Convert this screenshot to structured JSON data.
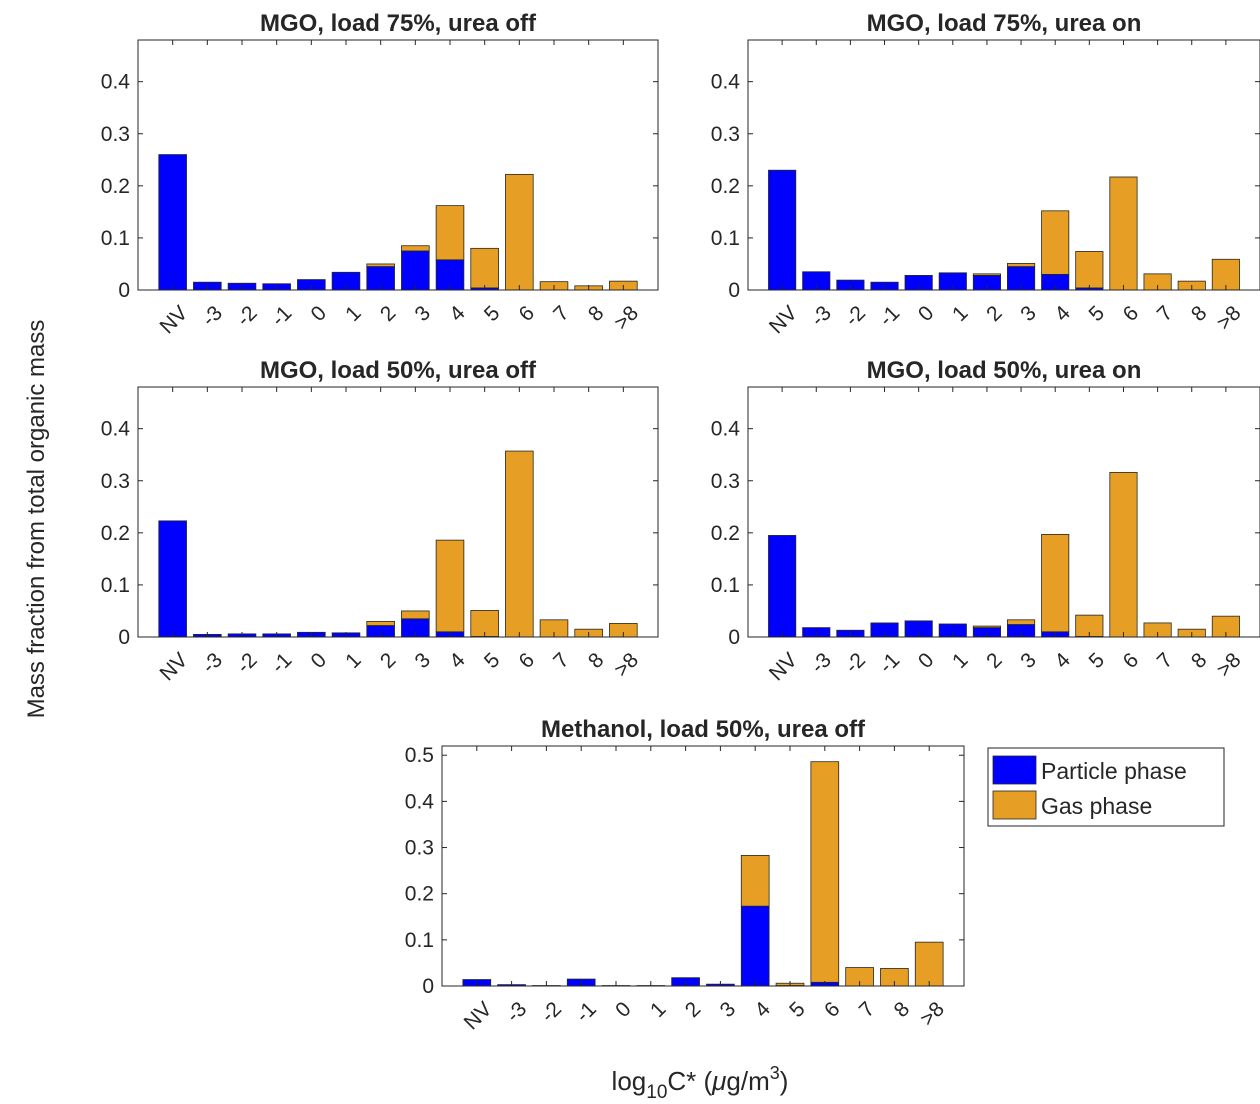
{
  "figure": {
    "ylabel": "Mass fraction from total organic mass",
    "xlabel_parts": [
      "log",
      "10",
      "C* (",
      "μ",
      "g/m",
      "3",
      ")"
    ]
  },
  "legend": {
    "items": [
      {
        "label": "Particle phase",
        "color": "#0000ff"
      },
      {
        "label": "Gas phase",
        "color": "#e69f24"
      }
    ]
  },
  "chart_data": [
    {
      "type": "bar",
      "stacked": true,
      "title": "MGO, load 75%, urea off",
      "categories": [
        "NV",
        "-3",
        "-2",
        "-1",
        "0",
        "1",
        "2",
        "3",
        "4",
        "5",
        "6",
        "7",
        "8",
        ">8"
      ],
      "ylim": [
        0,
        0.48
      ],
      "yticks": [
        0,
        0.1,
        0.2,
        0.3,
        0.4
      ],
      "series": [
        {
          "name": "Particle phase",
          "color": "#0000ff",
          "values": [
            0.26,
            0.015,
            0.013,
            0.012,
            0.02,
            0.034,
            0.045,
            0.075,
            0.058,
            0.004,
            0,
            0,
            0,
            0
          ]
        },
        {
          "name": "Gas phase",
          "color": "#e69f24",
          "values": [
            0,
            0,
            0,
            0,
            0,
            0,
            0.005,
            0.01,
            0.104,
            0.076,
            0.222,
            0.016,
            0.008,
            0.017
          ]
        }
      ]
    },
    {
      "type": "bar",
      "stacked": true,
      "title": "MGO, load 75%, urea on",
      "categories": [
        "NV",
        "-3",
        "-2",
        "-1",
        "0",
        "1",
        "2",
        "3",
        "4",
        "5",
        "6",
        "7",
        "8",
        ">8"
      ],
      "ylim": [
        0,
        0.48
      ],
      "yticks": [
        0,
        0.1,
        0.2,
        0.3,
        0.4
      ],
      "series": [
        {
          "name": "Particle phase",
          "color": "#0000ff",
          "values": [
            0.23,
            0.035,
            0.019,
            0.015,
            0.028,
            0.033,
            0.028,
            0.045,
            0.03,
            0.004,
            0,
            0,
            0,
            0
          ]
        },
        {
          "name": "Gas phase",
          "color": "#e69f24",
          "values": [
            0,
            0,
            0,
            0,
            0,
            0,
            0.003,
            0.006,
            0.122,
            0.07,
            0.217,
            0.031,
            0.017,
            0.059
          ]
        }
      ]
    },
    {
      "type": "bar",
      "stacked": true,
      "title": "MGO, load 50%, urea off",
      "categories": [
        "NV",
        "-3",
        "-2",
        "-1",
        "0",
        "1",
        "2",
        "3",
        "4",
        "5",
        "6",
        "7",
        "8",
        ">8"
      ],
      "ylim": [
        0,
        0.48
      ],
      "yticks": [
        0,
        0.1,
        0.2,
        0.3,
        0.4
      ],
      "series": [
        {
          "name": "Particle phase",
          "color": "#0000ff",
          "values": [
            0.223,
            0.005,
            0.006,
            0.006,
            0.009,
            0.008,
            0.022,
            0.035,
            0.01,
            0.001,
            0,
            0,
            0,
            0
          ]
        },
        {
          "name": "Gas phase",
          "color": "#e69f24",
          "values": [
            0,
            0,
            0,
            0,
            0,
            0,
            0.008,
            0.015,
            0.176,
            0.05,
            0.357,
            0.033,
            0.015,
            0.026
          ]
        }
      ]
    },
    {
      "type": "bar",
      "stacked": true,
      "title": "MGO, load 50%, urea on",
      "categories": [
        "NV",
        "-3",
        "-2",
        "-1",
        "0",
        "1",
        "2",
        "3",
        "4",
        "5",
        "6",
        "7",
        "8",
        ">8"
      ],
      "ylim": [
        0,
        0.48
      ],
      "yticks": [
        0,
        0.1,
        0.2,
        0.3,
        0.4
      ],
      "series": [
        {
          "name": "Particle phase",
          "color": "#0000ff",
          "values": [
            0.195,
            0.018,
            0.013,
            0.027,
            0.031,
            0.025,
            0.018,
            0.024,
            0.01,
            0.001,
            0,
            0,
            0,
            0
          ]
        },
        {
          "name": "Gas phase",
          "color": "#e69f24",
          "values": [
            0,
            0,
            0,
            0,
            0,
            0,
            0.003,
            0.009,
            0.187,
            0.041,
            0.316,
            0.027,
            0.015,
            0.04
          ]
        }
      ]
    },
    {
      "type": "bar",
      "stacked": true,
      "title": "Methanol, load 50%, urea off",
      "categories": [
        "NV",
        "-3",
        "-2",
        "-1",
        "0",
        "1",
        "2",
        "3",
        "4",
        "5",
        "6",
        "7",
        "8",
        ">8"
      ],
      "ylim": [
        0,
        0.52
      ],
      "yticks": [
        0,
        0.1,
        0.2,
        0.3,
        0.4,
        0.5
      ],
      "series": [
        {
          "name": "Particle phase",
          "color": "#0000ff",
          "values": [
            0.014,
            0.003,
            0.001,
            0.015,
            0.001,
            0.001,
            0.018,
            0.004,
            0.173,
            0.001,
            0.008,
            0,
            0,
            0
          ]
        },
        {
          "name": "Gas phase",
          "color": "#e69f24",
          "values": [
            0,
            0,
            0,
            0,
            0,
            0,
            0,
            0,
            0.11,
            0.005,
            0.478,
            0.04,
            0.038,
            0.095
          ]
        }
      ]
    }
  ]
}
